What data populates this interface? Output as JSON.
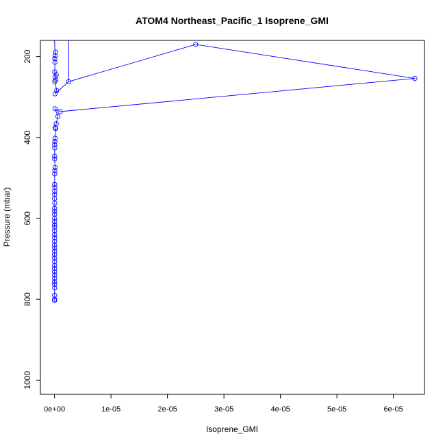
{
  "chart_data": {
    "type": "scatter",
    "title": "ATOM4 Northeast_Pacific_1 Isoprene_GMI",
    "xlabel": "Isoprene_GMI",
    "ylabel": "Pressure (mbar)",
    "xlim": [
      -2.5e-06,
      6.55e-05
    ],
    "ylim": [
      1035,
      160
    ],
    "y_reversed": true,
    "x_ticks": [
      0,
      1e-05,
      2e-05,
      3e-05,
      4e-05,
      5e-05,
      6e-05
    ],
    "x_tick_labels": [
      "0e+00",
      "1e-05",
      "2e-05",
      "3e-05",
      "4e-05",
      "5e-05",
      "6e-05"
    ],
    "y_ticks": [
      200,
      400,
      600,
      800,
      1000
    ],
    "y_tick_labels": [
      "200",
      "400",
      "600",
      "800",
      "1000"
    ],
    "color": "#0000ff",
    "series": [
      {
        "x": [
          2e-07,
          1e-07,
          5e-08,
          8e-08,
          3e-08,
          3e-07,
          1e-07,
          2e-07,
          5e-08,
          4e-07,
          1e-07,
          2.5e-06,
          2.5e-05,
          6.38e-05,
          1e-06,
          1e-07,
          6e-07,
          3e-07,
          1e-07,
          2e-07,
          1e-07,
          5e-08,
          2e-08,
          5e-08,
          3e-08,
          2e-08,
          1e-07,
          5e-08,
          3e-08,
          2e-08,
          5e-08,
          3e-08,
          2e-08,
          1e-08,
          3e-08,
          2e-08,
          2e-08,
          1e-08,
          2e-08,
          1e-08,
          1e-08,
          2e-08,
          1e-08,
          1e-08,
          2e-08,
          1e-08,
          1e-08,
          2e-08,
          1e-08,
          1e-08,
          1e-08,
          2e-08,
          1e-08,
          1e-08,
          1e-08,
          2e-08,
          1e-08,
          1e-08,
          1e-08,
          2e-08,
          1e-08,
          1e-08,
          1e-08
        ],
        "y": [
          189,
          198,
          205,
          214,
          238,
          245,
          251,
          258,
          262,
          284,
          292,
          262,
          170,
          254,
          336,
          329,
          348,
          366,
          376,
          378,
          402,
          410,
          418,
          426,
          446,
          453,
          474,
          482,
          490,
          516,
          523,
          533,
          541,
          551,
          562,
          575,
          582,
          590,
          600,
          608,
          616,
          622,
          631,
          640,
          648,
          657,
          666,
          673,
          681,
          690,
          698,
          707,
          716,
          724,
          732,
          740,
          748,
          757,
          763,
          772,
          790,
          800,
          803
        ]
      }
    ]
  }
}
